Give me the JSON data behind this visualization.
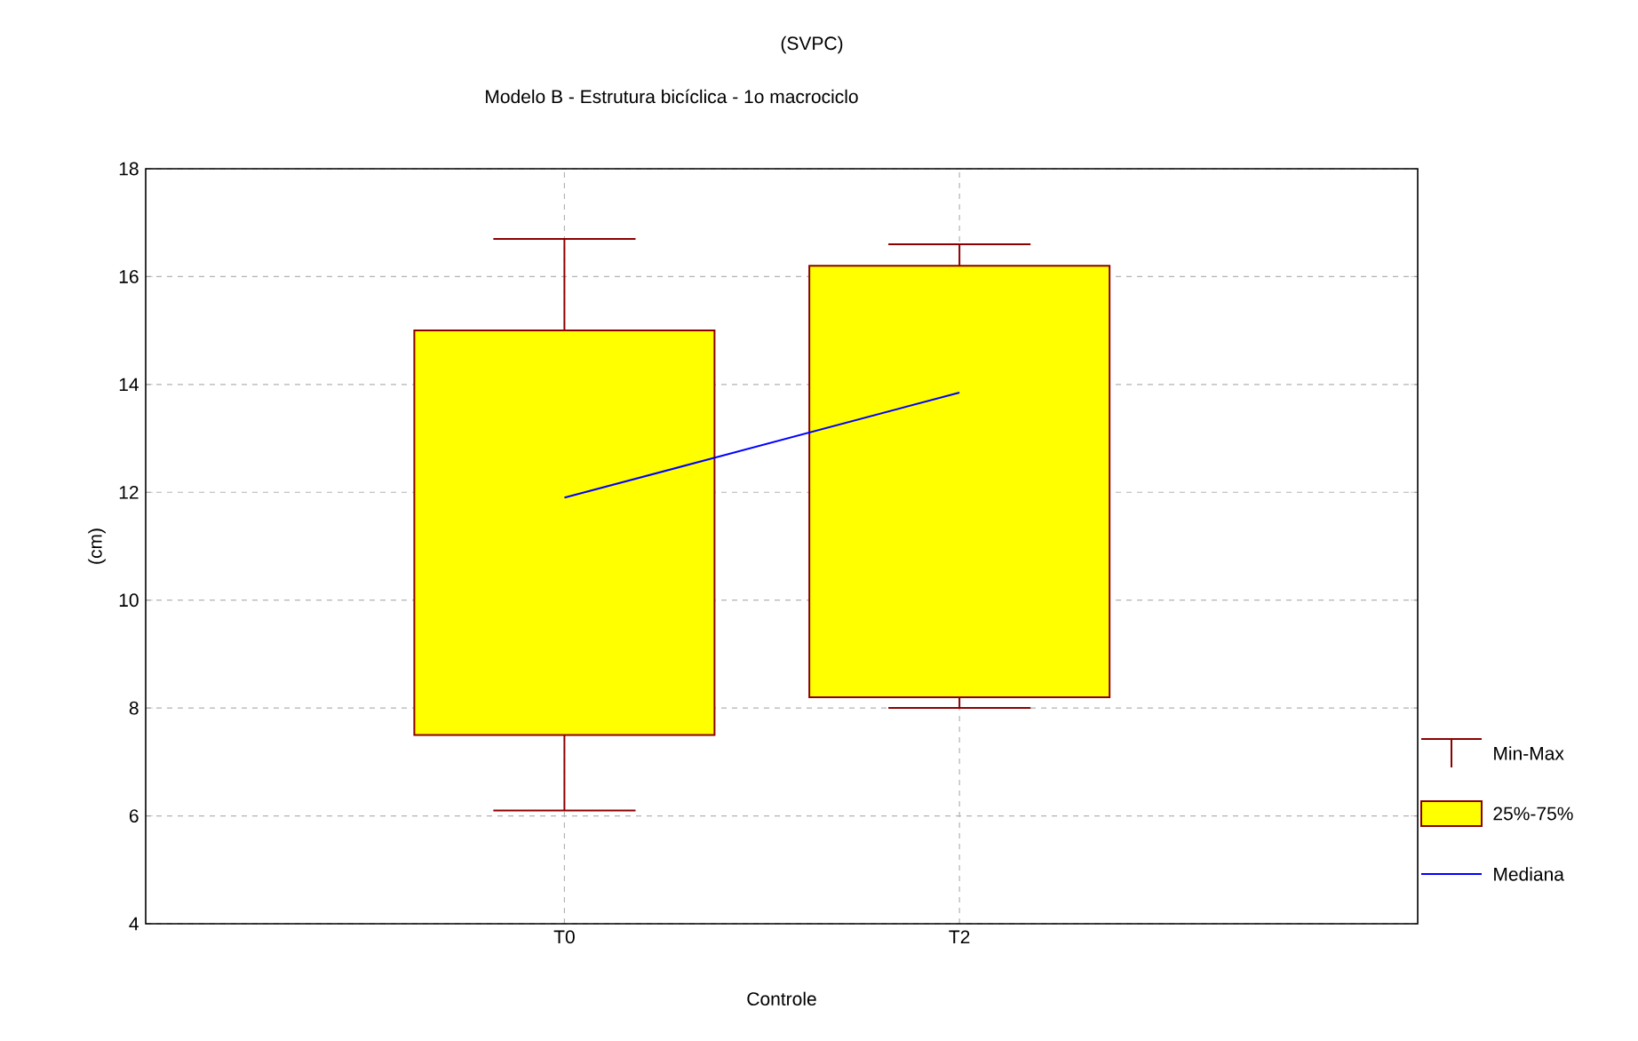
{
  "chart_data": {
    "type": "box",
    "title": "(SVPC)",
    "subtitle": "Modelo B - Estrutura bicíclica - 1o macrociclo",
    "xlabel": "Controle",
    "ylabel": "(cm)",
    "categories": [
      "T0",
      "T2"
    ],
    "series": [
      {
        "name": "25%-75%",
        "color": "#ffff00",
        "boxes": [
          {
            "low": 6.1,
            "q1": 7.5,
            "q3": 15.0,
            "high": 16.7
          },
          {
            "low": 8.0,
            "q1": 8.2,
            "q3": 16.2,
            "high": 16.6
          }
        ]
      },
      {
        "name": "Mediana",
        "type": "line",
        "color": "#0000ff",
        "values": [
          11.9,
          13.85
        ]
      }
    ],
    "ylim": [
      4,
      18
    ],
    "yticks": [
      4,
      6,
      8,
      10,
      12,
      14,
      16,
      18
    ],
    "grid": true,
    "legend": "bottom right",
    "annotations": [
      "Min-Max"
    ]
  }
}
